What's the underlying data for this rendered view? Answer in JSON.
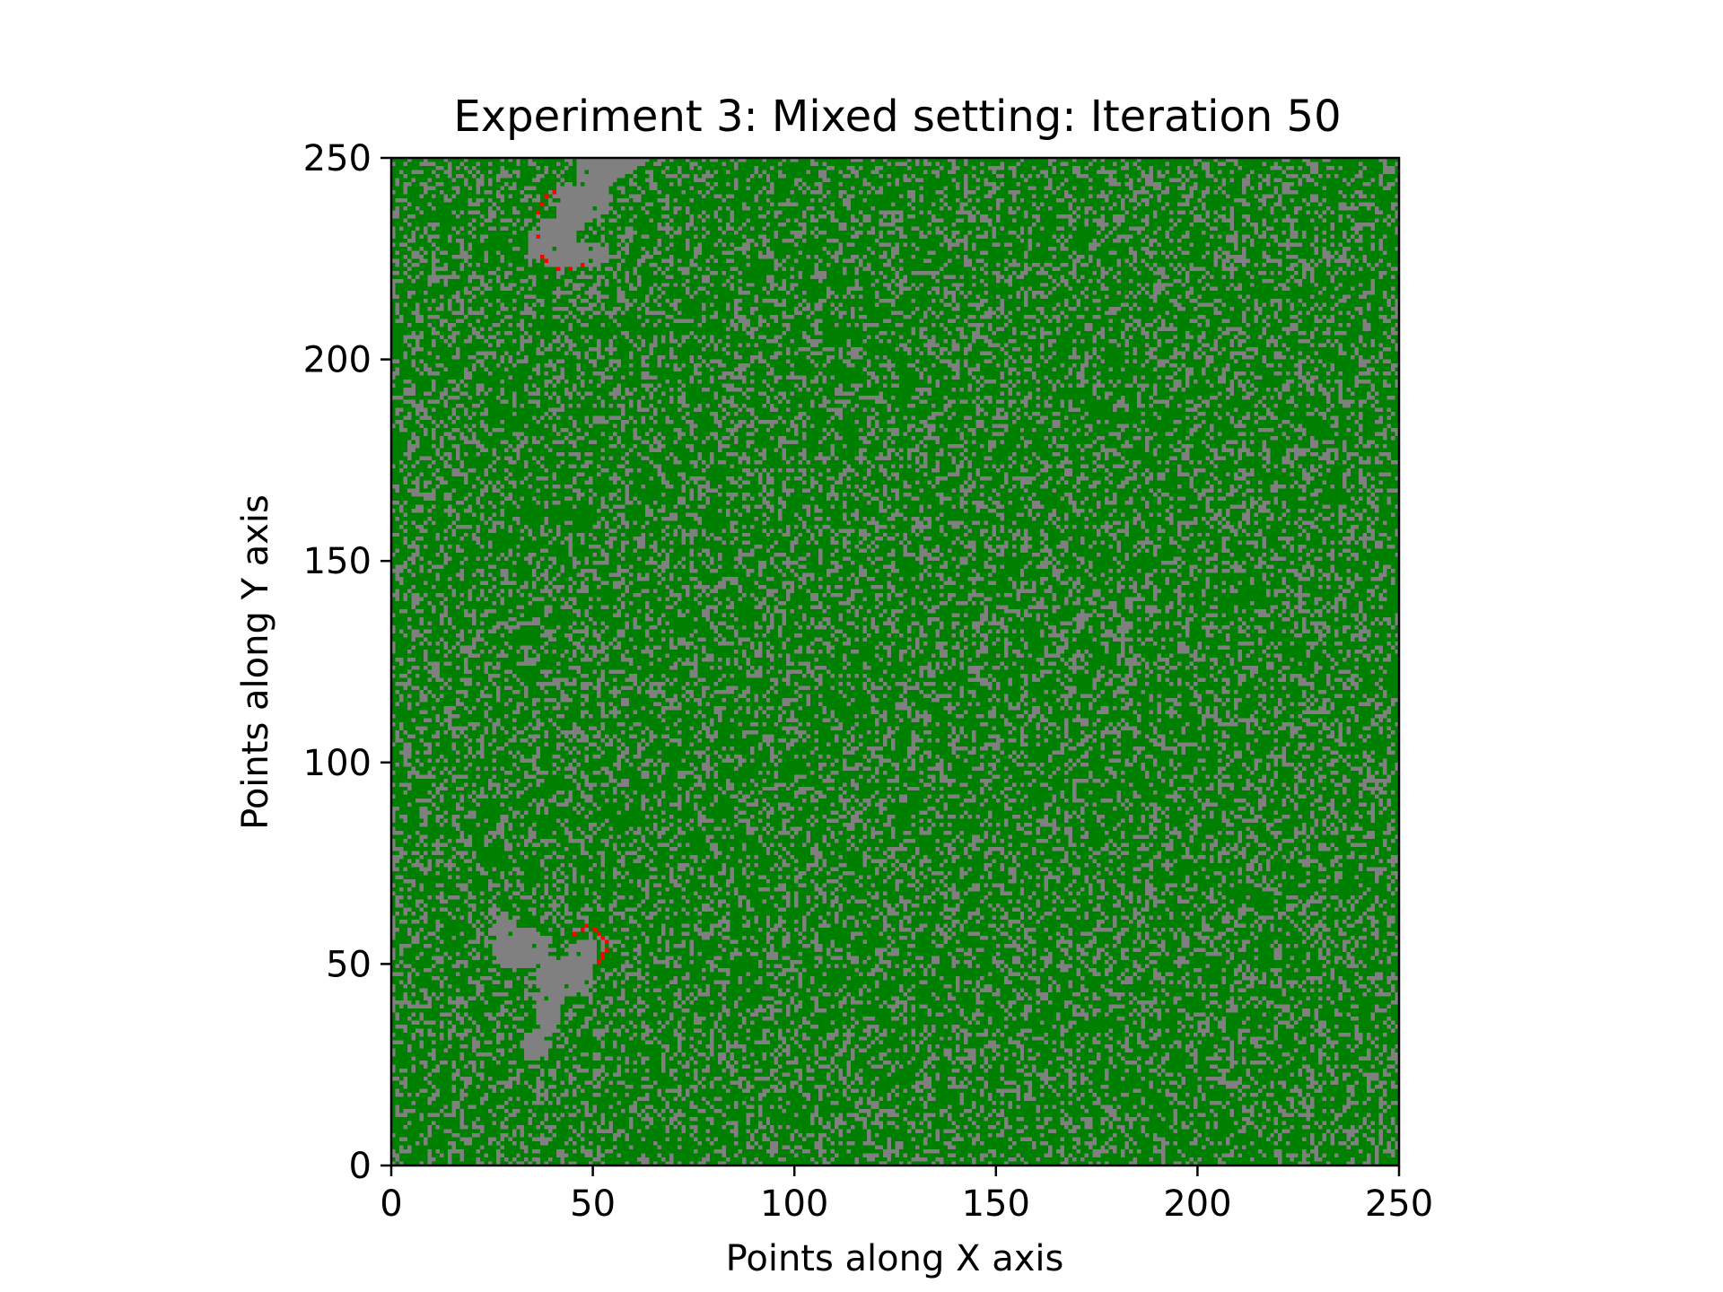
{
  "chart_data": {
    "type": "heatmap",
    "title": "Experiment 3: Mixed setting: Iteration 50",
    "xlabel": "Points along X axis",
    "ylabel": "Points along Y axis",
    "xlim": [
      0,
      250
    ],
    "ylim": [
      0,
      250
    ],
    "grid_size": [
      250,
      250
    ],
    "xticks": [
      0,
      50,
      100,
      150,
      200,
      250
    ],
    "yticks": [
      0,
      50,
      100,
      150,
      200,
      250
    ],
    "grid": false,
    "colors": {
      "vegetation": "#008000",
      "empty": "#808080",
      "burning": "#ff0000"
    },
    "gray_density": 0.28,
    "burned_regions": [
      {
        "center_approx": [
          40,
          235
        ],
        "fire_front": [
          [
            37,
            225
          ],
          [
            38,
            224
          ],
          [
            41,
            222
          ],
          [
            44,
            222
          ],
          [
            47,
            223
          ],
          [
            36,
            230
          ],
          [
            36,
            236
          ],
          [
            37,
            238
          ],
          [
            38,
            240
          ],
          [
            40,
            241
          ]
        ]
      },
      {
        "center_approx": [
          38,
          42
        ],
        "fire_front": [
          [
            45,
            57
          ],
          [
            47,
            58
          ],
          [
            48,
            59
          ],
          [
            50,
            58
          ],
          [
            51,
            57
          ],
          [
            52,
            56
          ],
          [
            53,
            55
          ],
          [
            53,
            53
          ],
          [
            52,
            52
          ],
          [
            52,
            51
          ],
          [
            51,
            50
          ]
        ]
      }
    ]
  }
}
